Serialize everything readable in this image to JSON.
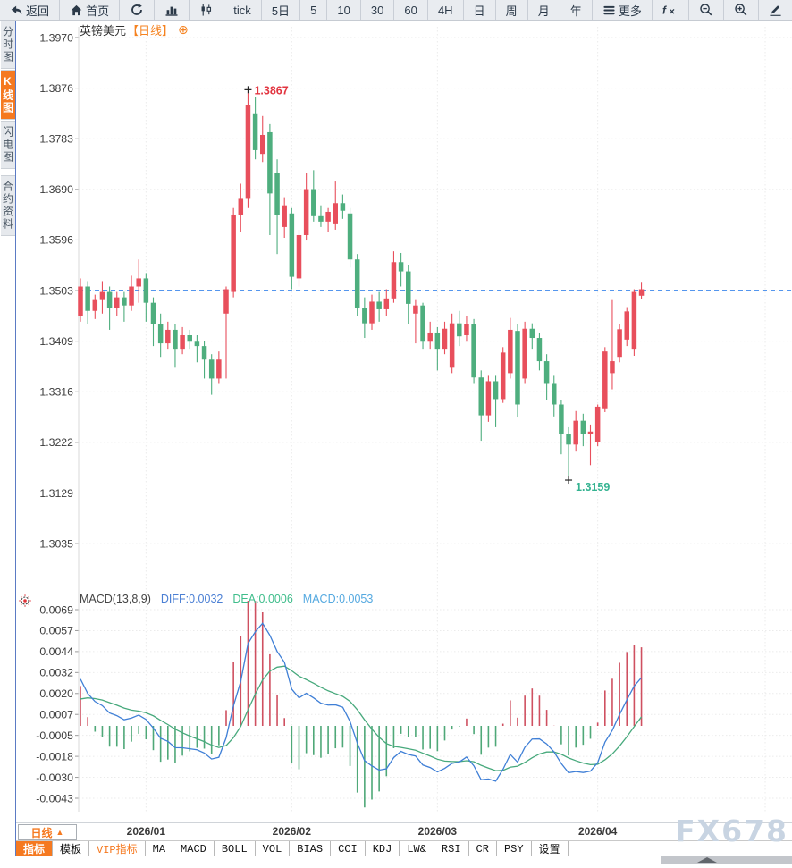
{
  "toolbar": {
    "items": [
      {
        "id": "back",
        "label": "返回",
        "icon": "back-icon"
      },
      {
        "id": "home",
        "label": "首页",
        "icon": "home-icon"
      },
      {
        "id": "refresh",
        "label": "",
        "icon": "refresh-icon"
      },
      {
        "id": "chart-type-bar",
        "label": "",
        "icon": "bar-chart-icon"
      },
      {
        "id": "chart-type-candle",
        "label": "",
        "icon": "candlestick-icon"
      },
      {
        "id": "interval-tick",
        "label": "tick",
        "icon": ""
      },
      {
        "id": "interval-5d",
        "label": "5日",
        "icon": ""
      },
      {
        "id": "interval-5",
        "label": "5",
        "icon": ""
      },
      {
        "id": "interval-10",
        "label": "10",
        "icon": ""
      },
      {
        "id": "interval-30",
        "label": "30",
        "icon": ""
      },
      {
        "id": "interval-60",
        "label": "60",
        "icon": ""
      },
      {
        "id": "interval-4h",
        "label": "4H",
        "icon": ""
      },
      {
        "id": "interval-day",
        "label": "日",
        "icon": ""
      },
      {
        "id": "interval-week",
        "label": "周",
        "icon": ""
      },
      {
        "id": "interval-month",
        "label": "月",
        "icon": ""
      },
      {
        "id": "interval-year",
        "label": "年",
        "icon": ""
      },
      {
        "id": "more",
        "label": "更多",
        "icon": "more-icon"
      },
      {
        "id": "fx-indicator",
        "label": "",
        "icon": "fx-icon"
      },
      {
        "id": "zoom-out",
        "label": "",
        "icon": "zoom-out-icon"
      },
      {
        "id": "zoom-in",
        "label": "",
        "icon": "zoom-in-icon"
      },
      {
        "id": "draw",
        "label": "",
        "icon": "pencil-icon"
      }
    ]
  },
  "sidebar": {
    "tabs": [
      {
        "id": "timeshare",
        "label": "分时图",
        "active": false
      },
      {
        "id": "kline",
        "label": "K线图",
        "active": true
      },
      {
        "id": "flash",
        "label": "闪电图",
        "active": false
      },
      {
        "id": "contract-info",
        "label": "合约资料",
        "active": false
      }
    ]
  },
  "chart_header": {
    "symbol": "英镑美元",
    "period_tag": "【日线】",
    "add_icon": "⊕"
  },
  "period_selector": {
    "label": "日线",
    "arrow": "▲"
  },
  "x_axis": {
    "months": [
      {
        "label": "2026/01",
        "candle_index": 9
      },
      {
        "label": "2026/02",
        "candle_index": 29
      },
      {
        "label": "2026/03",
        "candle_index": 49
      },
      {
        "label": "2026/04",
        "candle_index": 71
      }
    ]
  },
  "bottom_tabs": {
    "items": [
      {
        "id": "indicator",
        "label": "指标",
        "selected": true,
        "vip": false
      },
      {
        "id": "template",
        "label": "模板",
        "selected": false,
        "vip": false
      },
      {
        "id": "vip-indicator",
        "label": "VIP指标",
        "selected": false,
        "vip": true
      },
      {
        "id": "ma",
        "label": "MA",
        "selected": false,
        "vip": false
      },
      {
        "id": "macd",
        "label": "MACD",
        "selected": false,
        "vip": false
      },
      {
        "id": "boll",
        "label": "BOLL",
        "selected": false,
        "vip": false
      },
      {
        "id": "vol",
        "label": "VOL",
        "selected": false,
        "vip": false
      },
      {
        "id": "bias",
        "label": "BIAS",
        "selected": false,
        "vip": false
      },
      {
        "id": "cci",
        "label": "CCI",
        "selected": false,
        "vip": false
      },
      {
        "id": "kdj",
        "label": "KDJ",
        "selected": false,
        "vip": false
      },
      {
        "id": "lwr",
        "label": "LW&",
        "selected": false,
        "vip": false
      },
      {
        "id": "rsi",
        "label": "RSI",
        "selected": false,
        "vip": false
      },
      {
        "id": "cr",
        "label": "CR",
        "selected": false,
        "vip": false
      },
      {
        "id": "psy",
        "label": "PSY",
        "selected": false,
        "vip": false
      },
      {
        "id": "settings",
        "label": "设置",
        "selected": false,
        "vip": false
      }
    ]
  },
  "watermark": "FX678",
  "colors": {
    "up": "#e84f5c",
    "down": "#4eae7e",
    "diff_line": "#3f7fd6",
    "dea_line": "#47a97c",
    "hist_up": "#cf5060",
    "hist_down": "#4fa878",
    "price_line": "#1b74e8",
    "accent": "#f57920",
    "high_label": "#e23540",
    "low_label": "#35b391",
    "toolbar_icon": "#2b3948",
    "watermark": "#c8d4e2"
  },
  "chart_data": [
    {
      "type": "candlestick",
      "title": "英镑美元 日线",
      "ylim": [
        1.3035,
        1.397
      ],
      "y_tick_labels": [
        "1.3970",
        "1.3876",
        "1.3783",
        "1.3690",
        "1.3596",
        "1.3503",
        "1.3409",
        "1.3316",
        "1.3222",
        "1.3129",
        "1.3035"
      ],
      "current_price_line": 1.3503,
      "annotations": {
        "high": {
          "index": 23,
          "price": 1.3867,
          "label": "1.3867"
        },
        "low": {
          "index": 67,
          "price": 1.3159,
          "label": "1.3159"
        }
      },
      "candles": [
        [
          1.3455,
          1.3525,
          1.3445,
          1.351
        ],
        [
          1.351,
          1.352,
          1.344,
          1.3465
        ],
        [
          1.3465,
          1.3495,
          1.345,
          1.3485
        ],
        [
          1.3485,
          1.352,
          1.346,
          1.35
        ],
        [
          1.35,
          1.351,
          1.343,
          1.347
        ],
        [
          1.347,
          1.35,
          1.3455,
          1.349
        ],
        [
          1.349,
          1.35,
          1.3445,
          1.3475
        ],
        [
          1.3475,
          1.353,
          1.3465,
          1.351
        ],
        [
          1.351,
          1.356,
          1.348,
          1.3525
        ],
        [
          1.3525,
          1.3535,
          1.3445,
          1.348
        ],
        [
          1.348,
          1.349,
          1.34,
          1.344
        ],
        [
          1.344,
          1.346,
          1.338,
          1.3405
        ],
        [
          1.3405,
          1.3445,
          1.3395,
          1.343
        ],
        [
          1.343,
          1.344,
          1.336,
          1.3395
        ],
        [
          1.3395,
          1.3435,
          1.3385,
          1.342
        ],
        [
          1.342,
          1.343,
          1.3395,
          1.3408
        ],
        [
          1.3408,
          1.342,
          1.337,
          1.34
        ],
        [
          1.34,
          1.341,
          1.334,
          1.3375
        ],
        [
          1.3375,
          1.3385,
          1.331,
          1.334
        ],
        [
          1.334,
          1.339,
          1.333,
          1.3375
        ],
        [
          1.346,
          1.351,
          1.334,
          1.3505
        ],
        [
          1.35,
          1.3655,
          1.349,
          1.3643
        ],
        [
          1.3643,
          1.37,
          1.361,
          1.3672
        ],
        [
          1.3672,
          1.3867,
          1.3655,
          1.3845
        ],
        [
          1.383,
          1.386,
          1.3745,
          1.3762
        ],
        [
          1.3755,
          1.3825,
          1.374,
          1.379
        ],
        [
          1.3795,
          1.381,
          1.3605,
          1.3682
        ],
        [
          1.372,
          1.3745,
          1.357,
          1.3642
        ],
        [
          1.362,
          1.3675,
          1.36,
          1.366
        ],
        [
          1.3645,
          1.3655,
          1.3505,
          1.3528
        ],
        [
          1.3525,
          1.3615,
          1.351,
          1.3605
        ],
        [
          1.3605,
          1.372,
          1.3595,
          1.369
        ],
        [
          1.369,
          1.3725,
          1.363,
          1.364
        ],
        [
          1.364,
          1.366,
          1.362,
          1.363
        ],
        [
          1.363,
          1.3655,
          1.361,
          1.3648
        ],
        [
          1.3625,
          1.3704,
          1.3615,
          1.3664
        ],
        [
          1.3664,
          1.368,
          1.3635,
          1.365
        ],
        [
          1.3645,
          1.3655,
          1.3545,
          1.356
        ],
        [
          1.356,
          1.357,
          1.3455,
          1.347
        ],
        [
          1.347,
          1.349,
          1.3415,
          1.3442
        ],
        [
          1.3442,
          1.3495,
          1.343,
          1.3482
        ],
        [
          1.3482,
          1.35,
          1.3445,
          1.3468
        ],
        [
          1.3468,
          1.3505,
          1.3455,
          1.3488
        ],
        [
          1.3488,
          1.3575,
          1.348,
          1.3555
        ],
        [
          1.3555,
          1.3572,
          1.351,
          1.3538
        ],
        [
          1.3538,
          1.355,
          1.344,
          1.3478
        ],
        [
          1.346,
          1.3485,
          1.3405,
          1.3475
        ],
        [
          1.3475,
          1.348,
          1.3395,
          1.3408
        ],
        [
          1.3408,
          1.3445,
          1.3395,
          1.3425
        ],
        [
          1.3425,
          1.3435,
          1.3355,
          1.3395
        ],
        [
          1.3395,
          1.3445,
          1.3385,
          1.3432
        ],
        [
          1.336,
          1.346,
          1.335,
          1.3442
        ],
        [
          1.3442,
          1.3465,
          1.34,
          1.3418
        ],
        [
          1.342,
          1.3455,
          1.3408,
          1.344
        ],
        [
          1.344,
          1.345,
          1.333,
          1.3342
        ],
        [
          1.3342,
          1.3355,
          1.3225,
          1.3272
        ],
        [
          1.3272,
          1.3345,
          1.326,
          1.3335
        ],
        [
          1.3335,
          1.3345,
          1.325,
          1.3302
        ],
        [
          1.3302,
          1.3398,
          1.3295,
          1.3388
        ],
        [
          1.335,
          1.3452,
          1.334,
          1.343
        ],
        [
          1.3428,
          1.344,
          1.3268,
          1.3292
        ],
        [
          1.334,
          1.3445,
          1.333,
          1.3432
        ],
        [
          1.3432,
          1.3442,
          1.3395,
          1.3415
        ],
        [
          1.3415,
          1.3425,
          1.3355,
          1.3372
        ],
        [
          1.3372,
          1.3385,
          1.33,
          1.333
        ],
        [
          1.333,
          1.3345,
          1.327,
          1.3292
        ],
        [
          1.3292,
          1.33,
          1.32,
          1.3238
        ],
        [
          1.3238,
          1.325,
          1.3159,
          1.3218
        ],
        [
          1.3218,
          1.328,
          1.3205,
          1.3262
        ],
        [
          1.3262,
          1.3275,
          1.3215,
          1.3238
        ],
        [
          1.3238,
          1.3255,
          1.318,
          1.3242
        ],
        [
          1.3222,
          1.3292,
          1.3215,
          1.3288
        ],
        [
          1.3285,
          1.3398,
          1.3278,
          1.339
        ],
        [
          1.335,
          1.3485,
          1.332,
          1.3372
        ],
        [
          1.338,
          1.344,
          1.337,
          1.3431
        ],
        [
          1.3412,
          1.3472,
          1.34,
          1.3464
        ],
        [
          1.3395,
          1.3505,
          1.3382,
          1.35
        ],
        [
          1.3493,
          1.3517,
          1.3487,
          1.3505
        ]
      ]
    },
    {
      "type": "macd",
      "params_label": "MACD(13,8,9)",
      "diff_label": "DIFF:0.0032",
      "dea_label": "DEA:0.0006",
      "macd_label": "MACD:0.0053",
      "params": [
        13,
        8,
        9
      ],
      "current": {
        "diff": 0.0032,
        "dea": 0.0006,
        "macd": 0.0053
      },
      "ylim": [
        -0.0043,
        0.0069
      ],
      "y_tick_labels": [
        "0.0069",
        "0.0057",
        "0.0044",
        "0.0032",
        "0.0020",
        "0.0007",
        "-0.0005",
        "-0.0018",
        "-0.0030",
        "-0.0043"
      ]
    }
  ]
}
